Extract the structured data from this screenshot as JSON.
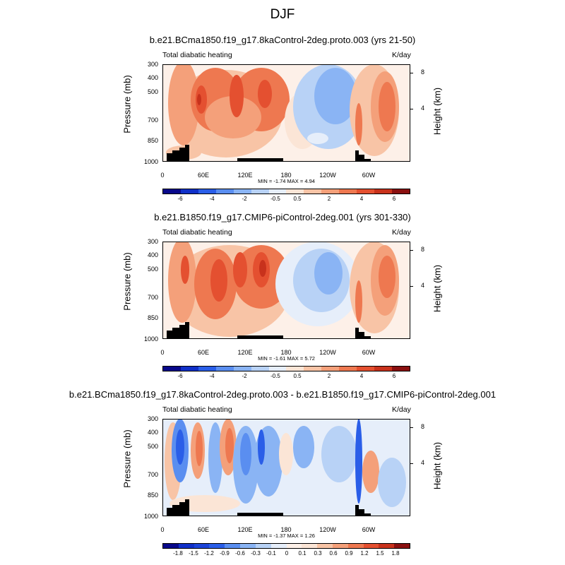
{
  "figure": {
    "title": "DJF"
  },
  "colors": {
    "contour_levels_fill": [
      "#08088a",
      "#1030c8",
      "#2a5ee8",
      "#5a8ef0",
      "#8ab4f4",
      "#b8d2f6",
      "#e6eefa",
      "#fbe5d6",
      "#f8c4a6",
      "#f4a07a",
      "#ee7850",
      "#e45030",
      "#c8321c",
      "#8a1010"
    ],
    "topography": "#000000"
  },
  "chart_data": [
    {
      "type": "heatmap",
      "title": "b.e21.BCma1850.f19_g17.8kaControl-2deg.proto.003 (yrs 21-50)",
      "left_string": "Total diabatic heating",
      "right_string": "K/day",
      "ylabel": "Pressure (mb)",
      "right_ylabel": "Height (km)",
      "yticks": [
        "300",
        "400",
        "500",
        "700",
        "850",
        "1000"
      ],
      "right_ticks": [
        "8",
        "4"
      ],
      "xticks": [
        "0",
        "60E",
        "120E",
        "180",
        "120W",
        "60W"
      ],
      "minmax": "MIN =  -1.74   MAX =   4.94",
      "colorbar_labels": [
        "-6",
        "-4",
        "-2",
        "-0.5",
        "0.5",
        "2",
        "4",
        "6"
      ],
      "min": -1.74,
      "max": 4.94
    },
    {
      "type": "heatmap",
      "title": "b.e21.B1850.f19_g17.CMIP6-piControl-2deg.001 (yrs 301-330)",
      "left_string": "Total diabatic heating",
      "right_string": "K/day",
      "ylabel": "Pressure (mb)",
      "right_ylabel": "Height (km)",
      "yticks": [
        "300",
        "400",
        "500",
        "700",
        "850",
        "1000"
      ],
      "right_ticks": [
        "8",
        "4"
      ],
      "xticks": [
        "0",
        "60E",
        "120E",
        "180",
        "120W",
        "60W"
      ],
      "minmax": "MIN =  -1.61   MAX =   5.72",
      "colorbar_labels": [
        "-6",
        "-4",
        "-2",
        "-0.5",
        "0.5",
        "2",
        "4",
        "6"
      ],
      "min": -1.61,
      "max": 5.72
    },
    {
      "type": "heatmap",
      "title": "b.e21.BCma1850.f19_g17.8kaControl-2deg.proto.003 - b.e21.B1850.f19_g17.CMIP6-piControl-2deg.001",
      "left_string": "Total diabatic heating",
      "right_string": "K/day",
      "ylabel": "Pressure (mb)",
      "right_ylabel": "Height (km)",
      "yticks": [
        "300",
        "400",
        "500",
        "700",
        "850",
        "1000"
      ],
      "right_ticks": [
        "8",
        "4"
      ],
      "xticks": [
        "0",
        "60E",
        "120E",
        "180",
        "120W",
        "60W"
      ],
      "minmax": "MIN =  -1.37   MAX =   1.26",
      "colorbar_labels": [
        "-1.8",
        "-1.5",
        "-1.2",
        "-0.9",
        "-0.6",
        "-0.3",
        "-0.1",
        "0",
        "0.1",
        "0.3",
        "0.6",
        "0.9",
        "1.2",
        "1.5",
        "1.8"
      ],
      "min": -1.37,
      "max": 1.26
    }
  ]
}
